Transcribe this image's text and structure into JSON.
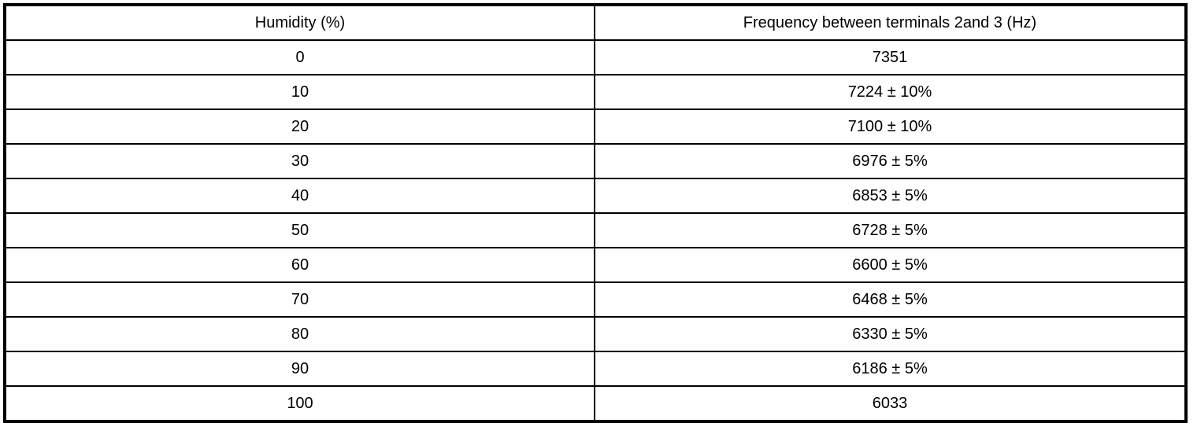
{
  "table": {
    "headers": [
      "Humidity (%)",
      "Frequency between terminals 2and 3 (Hz)"
    ],
    "rows": [
      [
        "0",
        "7351"
      ],
      [
        "10",
        "7224 ± 10%"
      ],
      [
        "20",
        "7100 ± 10%"
      ],
      [
        "30",
        "6976 ± 5%"
      ],
      [
        "40",
        "6853 ± 5%"
      ],
      [
        "50",
        "6728 ± 5%"
      ],
      [
        "60",
        "6600 ± 5%"
      ],
      [
        "70",
        "6468 ± 5%"
      ],
      [
        "80",
        "6330 ± 5%"
      ],
      [
        "90",
        "6186 ± 5%"
      ],
      [
        "100",
        "6033"
      ]
    ]
  }
}
